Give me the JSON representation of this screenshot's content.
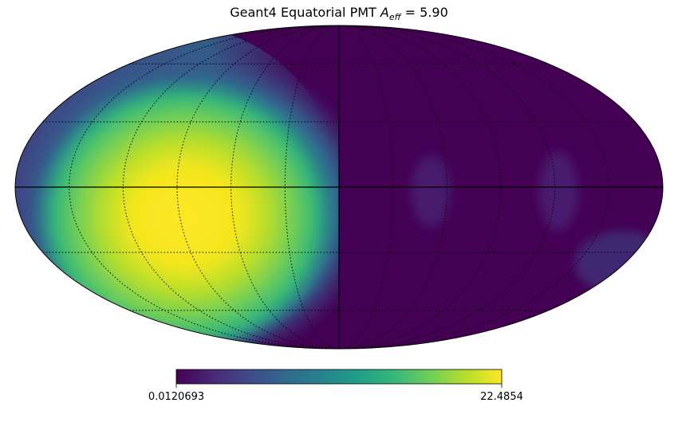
{
  "chart_data": {
    "type": "heatmap",
    "projection": "mollweide",
    "title_prefix": "Geant4 Equatorial PMT ",
    "title_symbol": "A",
    "title_subscript": "eff",
    "title_suffix": " = 5.90",
    "colormap": "viridis",
    "colorbar": {
      "min_label": "0.0120693",
      "max_label": "22.4854",
      "min": 0.0120693,
      "max": 22.4854,
      "placement": "bottom"
    },
    "graticule": {
      "meridian_spacing_deg": 30,
      "parallel_spacing_deg": 30,
      "style": "dotted"
    },
    "hotspot": {
      "lon_deg": -90,
      "lat_deg": 5,
      "value": 22.4854
    },
    "colors": {
      "viridis": [
        "#440154",
        "#482878",
        "#3e4a89",
        "#31688e",
        "#26828e",
        "#1f9e89",
        "#35b779",
        "#6ece58",
        "#b5de2b",
        "#fde725"
      ],
      "line": "#000000"
    }
  }
}
